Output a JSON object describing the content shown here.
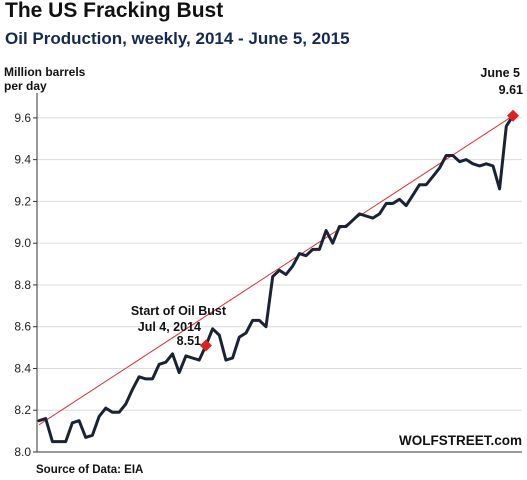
{
  "title": "The US Fracking Bust",
  "subtitle": "Oil Production, weekly, 2014 - June 5, 2015",
  "source": "Source of Data: EIA",
  "brand": "WOLFSTREET.com",
  "colors": {
    "series": "#1a2336",
    "trend": "#e03030",
    "marker": "#e02020",
    "grid": "#dcdcdc",
    "axis": "#333333"
  },
  "chart_data": {
    "type": "line",
    "title": "The US Fracking Bust",
    "subtitle": "Oil Production, weekly, 2014 - June 5, 2015",
    "ylabel": "Million barrels per day",
    "ylabel_lines": [
      "Million barrels",
      "per day"
    ],
    "ylim": [
      8.0,
      9.7
    ],
    "yticks": [
      8.0,
      8.2,
      8.4,
      8.6,
      8.8,
      9.0,
      9.2,
      9.4,
      9.6
    ],
    "ytick_labels": [
      "8.0",
      "8.2",
      "8.4",
      "8.6",
      "8.8",
      "9.0",
      "9.2",
      "9.4",
      "9.6"
    ],
    "grid": "horizontal",
    "x_unit": "week index (2014 to June 5, 2015)",
    "series": [
      {
        "values": [
          8.15,
          8.16,
          8.05,
          8.05,
          8.05,
          8.14,
          8.15,
          8.07,
          8.08,
          8.17,
          8.21,
          8.19,
          8.19,
          8.23,
          8.3,
          8.36,
          8.35,
          8.35,
          8.42,
          8.43,
          8.47,
          8.38,
          8.46,
          8.45,
          8.44,
          8.51,
          8.59,
          8.56,
          8.44,
          8.45,
          8.55,
          8.57,
          8.63,
          8.63,
          8.6,
          8.84,
          8.87,
          8.85,
          8.89,
          8.95,
          8.94,
          8.97,
          8.97,
          9.06,
          9.0,
          9.08,
          9.08,
          9.11,
          9.14,
          9.13,
          9.12,
          9.14,
          9.19,
          9.19,
          9.21,
          9.18,
          9.23,
          9.28,
          9.28,
          9.32,
          9.36,
          9.42,
          9.42,
          9.39,
          9.4,
          9.38,
          9.37,
          9.38,
          9.37,
          9.26,
          9.56,
          9.61
        ]
      }
    ],
    "trendline": {
      "start": 8.13,
      "end": 9.61
    },
    "annotations": [
      {
        "lines": [
          "Start of Oil Bust",
          "Jul 4, 2014",
          "8.51"
        ],
        "index": 25,
        "value": 8.51
      },
      {
        "lines": [
          "June 5",
          "9.61"
        ],
        "index": 71,
        "value": 9.61
      }
    ]
  }
}
